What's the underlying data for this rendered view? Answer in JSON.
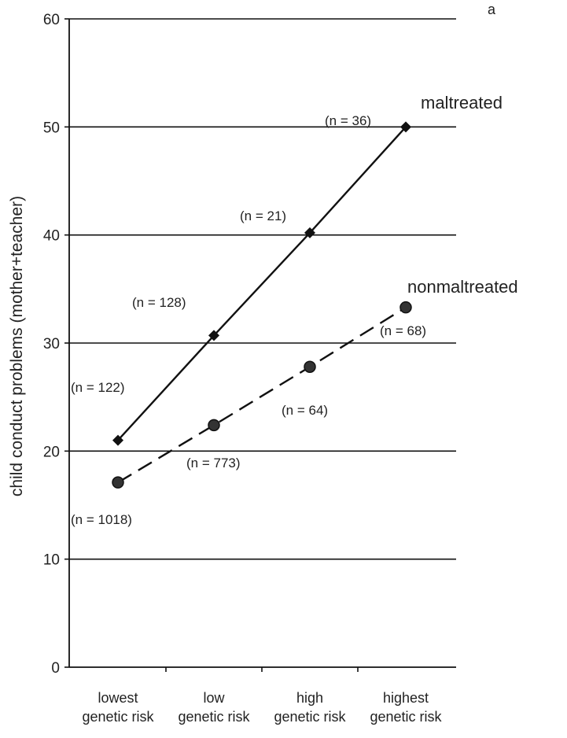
{
  "chart_data": {
    "type": "line",
    "panel_label": "a",
    "ylabel": "child conduct problems (mother+teacher)",
    "xlabel": "",
    "ylim": [
      0,
      60
    ],
    "yticks": [
      "0",
      "10",
      "20",
      "30",
      "40",
      "50",
      "60"
    ],
    "categories": [
      [
        "lowest",
        "genetic risk"
      ],
      [
        "low",
        "genetic risk"
      ],
      [
        "high",
        "genetic risk"
      ],
      [
        "highest",
        "genetic risk"
      ]
    ],
    "grid": true,
    "series": [
      {
        "name": "maltreated",
        "style": "solid",
        "marker": "diamond",
        "values": [
          21,
          30.7,
          40.2,
          50
        ],
        "n_labels": [
          "(n = 122)",
          "(n = 128)",
          "(n = 21)",
          "(n = 36)"
        ]
      },
      {
        "name": "nonmaltreated",
        "style": "dashed",
        "marker": "circle",
        "values": [
          17.1,
          22.4,
          27.8,
          33.3
        ],
        "n_labels": [
          "(n = 1018)",
          "(n = 773)",
          "(n = 64)",
          "(n = 68)"
        ]
      }
    ],
    "colors": {
      "line": "#111111",
      "grid": "#111111",
      "text": "#222222"
    }
  }
}
